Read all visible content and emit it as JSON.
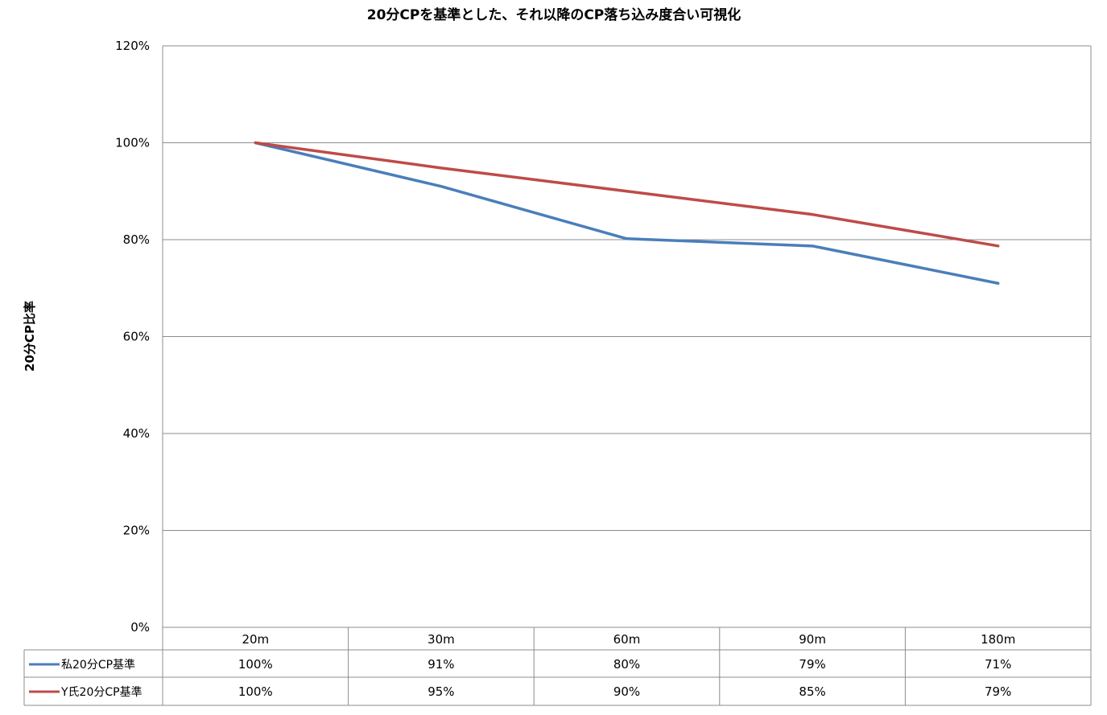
{
  "chart_data": {
    "type": "line",
    "title": "20分CPを基準とした、それ以降のCP落ち込み度合い可視化",
    "ylabel": "20分CP比率",
    "xlabel": "",
    "categories": [
      "20m",
      "30m",
      "60m",
      "90m",
      "180m"
    ],
    "ylim": [
      0,
      1.2
    ],
    "yticks": [
      0,
      0.2,
      0.4,
      0.6,
      0.8,
      1.0,
      1.2
    ],
    "ytick_labels": [
      "0%",
      "20%",
      "40%",
      "60%",
      "80%",
      "100%",
      "120%"
    ],
    "grid": true,
    "legend": "data-table",
    "series": [
      {
        "name": "私20分CP基準",
        "color": "#4a7ebb",
        "values": [
          1.0,
          0.91,
          0.802,
          0.787,
          0.71
        ],
        "labels": [
          "100%",
          "91%",
          "80%",
          "79%",
          "71%"
        ]
      },
      {
        "name": "Y氏20分CP基準",
        "color": "#be4b48",
        "values": [
          1.0,
          0.948,
          0.9,
          0.852,
          0.787
        ],
        "labels": [
          "100%",
          "95%",
          "90%",
          "85%",
          "79%"
        ]
      }
    ]
  }
}
